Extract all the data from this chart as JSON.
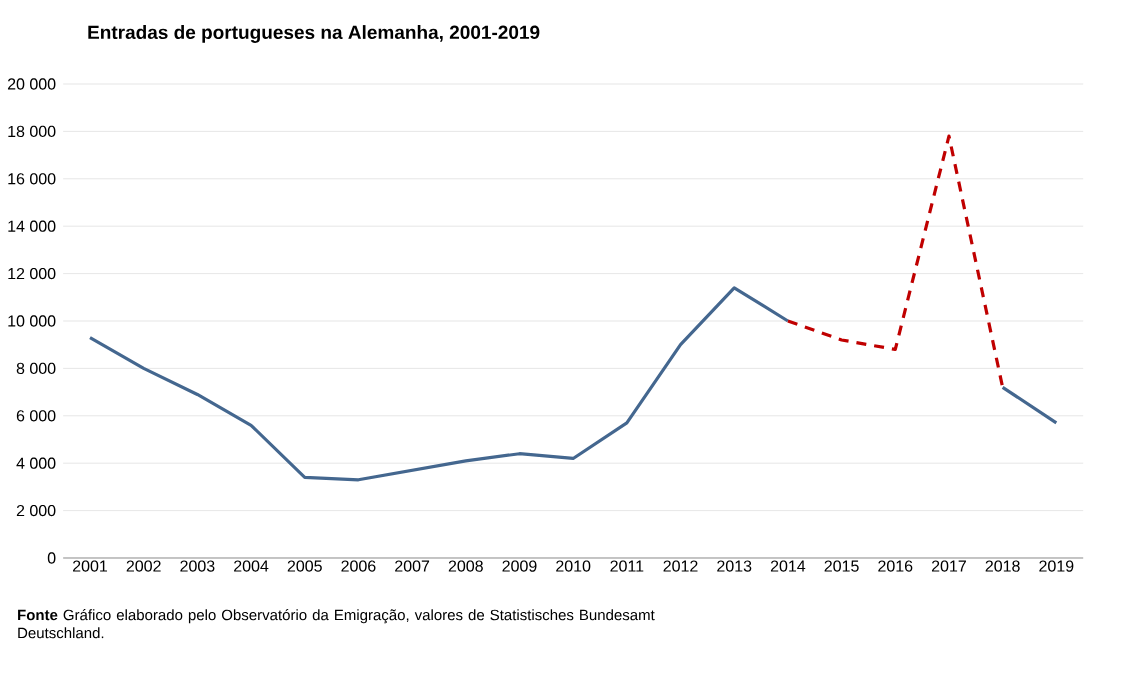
{
  "chart_data": {
    "type": "line",
    "title": "Entradas  de portugueses  na Alemanha, 2001-2019",
    "categories": [
      "2001",
      "2002",
      "2003",
      "2004",
      "2005",
      "2006",
      "2007",
      "2008",
      "2009",
      "2010",
      "2011",
      "2012",
      "2013",
      "2014",
      "2015",
      "2016",
      "2017",
      "2018",
      "2019"
    ],
    "series": [
      {
        "color": "#44678f",
        "line_style": "solid",
        "values": [
          9300,
          8000,
          6900,
          5600,
          3400,
          3300,
          3700,
          4100,
          4400,
          4200,
          5700,
          9000,
          11400,
          10000,
          null,
          null,
          null,
          7200,
          5700
        ]
      },
      {
        "color": "#c00000",
        "line_style": "dashed",
        "values": [
          null,
          null,
          null,
          null,
          null,
          null,
          null,
          null,
          null,
          null,
          null,
          null,
          null,
          10000,
          9200,
          8800,
          17800,
          7200,
          null
        ]
      }
    ],
    "ylim": [
      0,
      20000
    ],
    "yticks": [
      {
        "value": 0,
        "label": "0"
      },
      {
        "value": 2000,
        "label": "2 000"
      },
      {
        "value": 4000,
        "label": "4 000"
      },
      {
        "value": 6000,
        "label": "6 000"
      },
      {
        "value": 8000,
        "label": "8 000"
      },
      {
        "value": 10000,
        "label": "10 000"
      },
      {
        "value": 12000,
        "label": "12 000"
      },
      {
        "value": 14000,
        "label": "14 000"
      },
      {
        "value": 16000,
        "label": "16 000"
      },
      {
        "value": 18000,
        "label": "18 000"
      },
      {
        "value": 20000,
        "label": "20 000"
      }
    ],
    "grid": "y",
    "marker": "none",
    "annotations": [
      "**Fonte**  Gráfico elaborado pelo  Observatório da Emigração,  valores de Statistisches Bundesamt Deutschland."
    ]
  }
}
